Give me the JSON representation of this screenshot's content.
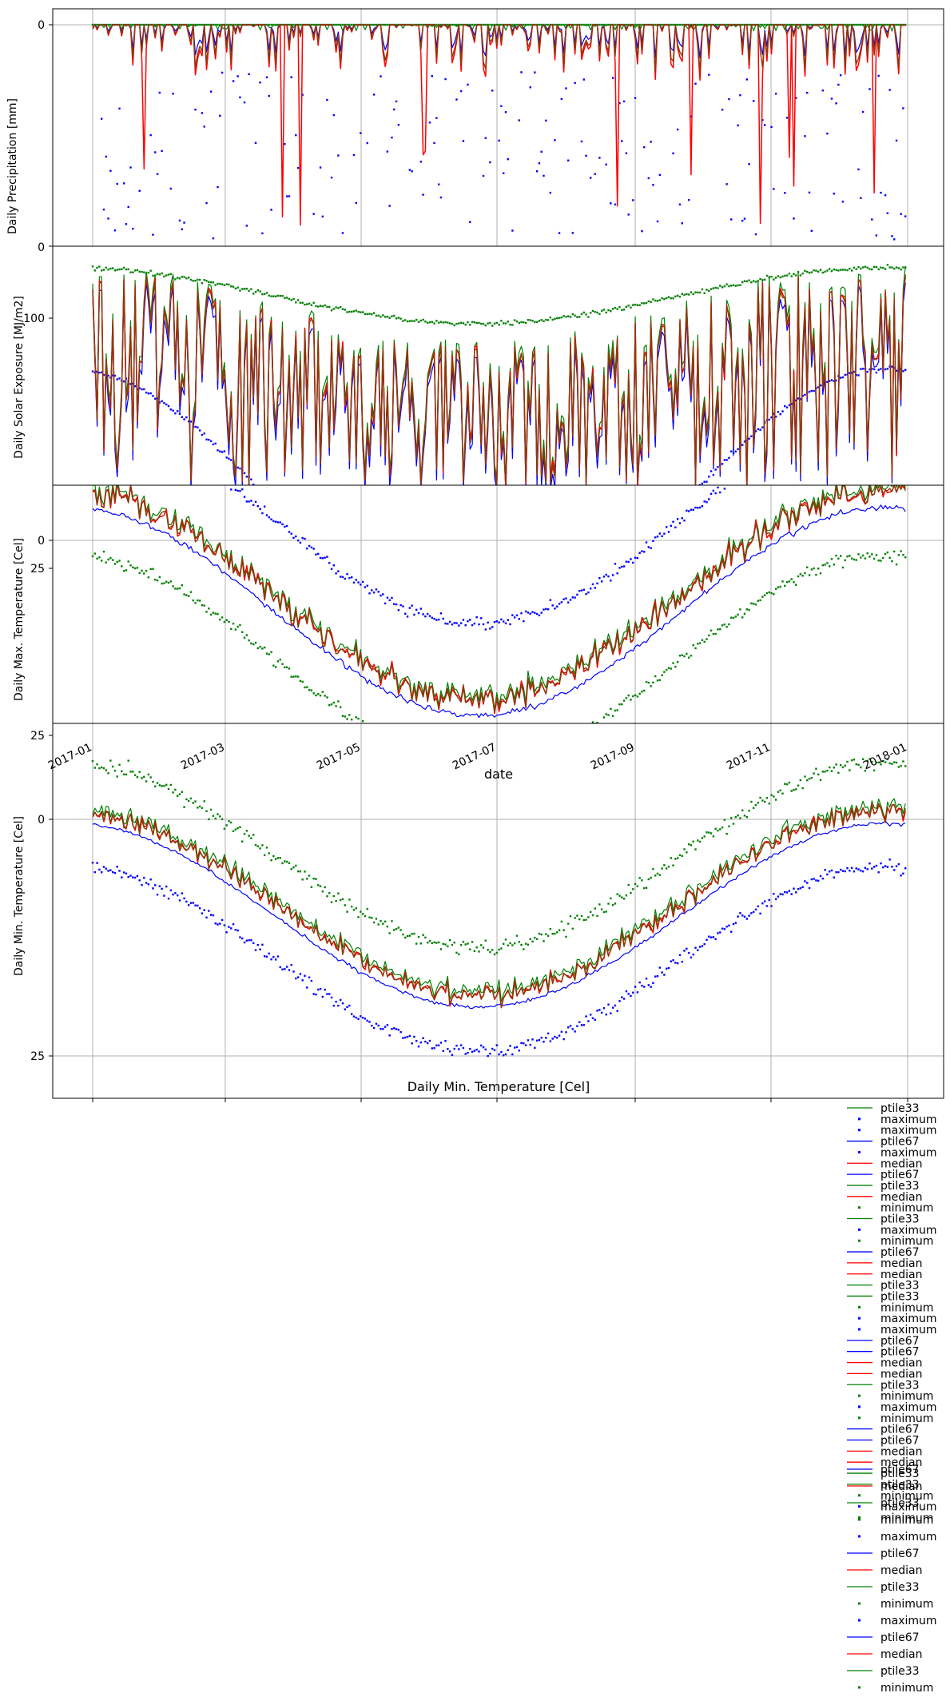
{
  "figure": {
    "xlabel": "date",
    "bottom_title": "Daily Min. Temperature [Cel]",
    "x_tick_labels": [
      "2017-01",
      "2017-03",
      "2017-05",
      "2017-07",
      "2017-09",
      "2017-11",
      "2018-01"
    ]
  },
  "colors": {
    "maximum": "#0000ff",
    "ptile67": "#0000ff",
    "median": "#ff0000",
    "ptile33": "#008000",
    "minimum": "#008000",
    "overlap": "#8b3a0a",
    "grid": "#b0b0b0",
    "axes": "#000000"
  },
  "chart_data": [
    {
      "type": "line",
      "ylabel": "Daily Precipitation [mm]",
      "y_tick_labels": [
        "0",
        "0"
      ],
      "grid": true,
      "x": "daily 2017-01-01..2017-12-31",
      "series": [
        {
          "name": "maximum",
          "style": "points",
          "description_values": "scattered 0..-45 below zero line"
        },
        {
          "name": "ptile67",
          "style": "line"
        },
        {
          "name": "median",
          "style": "line"
        },
        {
          "name": "ptile33",
          "style": "line"
        },
        {
          "name": "minimum",
          "style": "points"
        }
      ]
    },
    {
      "type": "line",
      "ylabel": "Daily Solar Exposure [MJ/m2]",
      "y_tick_labels": [
        "100"
      ],
      "grid": false,
      "series": [
        {
          "name": "maximum",
          "style": "points"
        },
        {
          "name": "ptile67",
          "style": "line"
        },
        {
          "name": "median",
          "style": "line"
        },
        {
          "name": "ptile33",
          "style": "line"
        },
        {
          "name": "minimum",
          "style": "points"
        }
      ]
    },
    {
      "type": "line",
      "ylabel": "Daily Max. Temperature [Cel]",
      "y_tick_labels": [
        "0",
        "25"
      ],
      "grid": true,
      "series": [
        {
          "name": "maximum",
          "style": "points"
        },
        {
          "name": "ptile67",
          "style": "line"
        },
        {
          "name": "median",
          "style": "line"
        },
        {
          "name": "ptile33",
          "style": "line"
        },
        {
          "name": "minimum",
          "style": "points"
        }
      ]
    },
    {
      "type": "line",
      "ylabel": "Daily Min. Temperature [Cel]",
      "y_tick_labels": [
        "25",
        "0",
        "25"
      ],
      "grid": true,
      "series": [
        {
          "name": "maximum",
          "style": "points"
        },
        {
          "name": "ptile67",
          "style": "line"
        },
        {
          "name": "median",
          "style": "line"
        },
        {
          "name": "ptile33",
          "style": "line"
        },
        {
          "name": "minimum",
          "style": "points"
        }
      ]
    }
  ],
  "legend": {
    "overlap_entries": [
      "ptile33",
      "maximum",
      "maximum",
      "ptile67",
      "maximum",
      "median",
      "ptile67",
      "ptile33",
      "median",
      "minimum",
      "ptile33",
      "maximum",
      "minimum",
      "ptile67",
      "median",
      "median",
      "ptile33",
      "ptile33",
      "minimum",
      "maximum",
      "maximum",
      "ptile67",
      "ptile67",
      "median",
      "median",
      "ptile33",
      "minimum",
      "maximum",
      "minimum",
      "ptile67",
      "ptile67",
      "median",
      "median",
      "ptile33",
      "ptile33",
      "minimum",
      "maximum",
      "minimum"
    ],
    "entries": [
      "ptile67",
      "median",
      "ptile33",
      "minimum",
      "maximum",
      "ptile67",
      "median",
      "ptile33",
      "minimum",
      "maximum",
      "ptile67",
      "median",
      "ptile33",
      "minimum"
    ]
  }
}
